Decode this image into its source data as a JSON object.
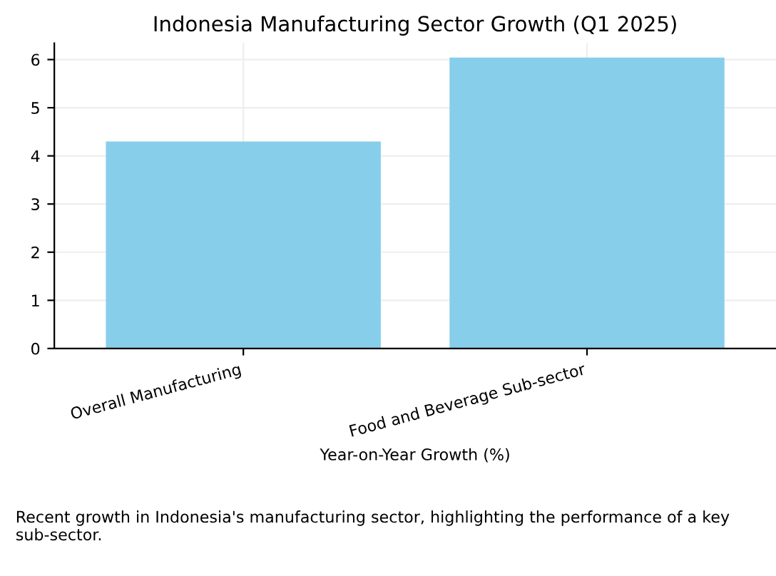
{
  "chart_data": {
    "type": "bar",
    "title": "Indonesia Manufacturing Sector Growth (Q1 2025)",
    "xlabel": "Year-on-Year Growth (%)",
    "categories": [
      "Overall Manufacturing",
      "Food and Beverage Sub-sector"
    ],
    "values": [
      4.3,
      6.04
    ],
    "color": "#87ceeb",
    "ylim": [
      0,
      6.34
    ],
    "yticks": [
      0,
      1,
      2,
      3,
      4,
      5,
      6
    ],
    "grid": true,
    "annotations": [
      "Recent growth in Indonesia's manufacturing sector, highlighting the performance of a key sub-sector."
    ]
  }
}
